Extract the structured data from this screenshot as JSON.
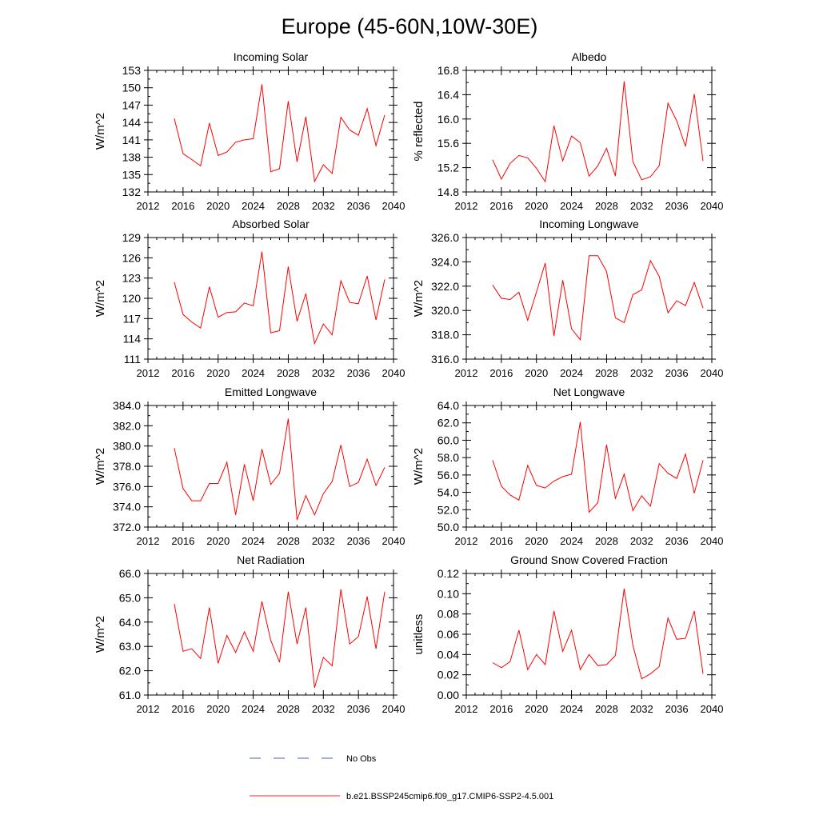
{
  "figure": {
    "title": "Europe (45-60N,10W-30E)",
    "legend": [
      {
        "label": "No Obs",
        "color": "#4a5fc1",
        "dash": true
      },
      {
        "label": "b.e21.BSSP245cmip6.f09_g17.CMIP6-SSP2-4.5.001",
        "color": "#ff2020",
        "dash": false
      }
    ]
  },
  "colors": {
    "series": "#ff0000",
    "obs": "#4a5fc1",
    "axis": "#000000"
  },
  "chart_data": [
    {
      "type": "line",
      "title": "Incoming Solar",
      "ylabel": "W/m^2",
      "xlim": [
        2012,
        2040
      ],
      "xticks": [
        "2012",
        "2016",
        "2020",
        "2024",
        "2028",
        "2032",
        "2036",
        "2040"
      ],
      "ylim": [
        132,
        153
      ],
      "yticks": [
        "132",
        "135",
        "138",
        "141",
        "144",
        "147",
        "150",
        "153"
      ],
      "x": [
        2015,
        2016,
        2017,
        2018,
        2019,
        2020,
        2021,
        2022,
        2023,
        2024,
        2025,
        2026,
        2027,
        2028,
        2029,
        2030,
        2031,
        2032,
        2033,
        2034,
        2035,
        2036,
        2037,
        2038,
        2039
      ],
      "values": [
        144.7,
        138.6,
        137.6,
        136.5,
        143.9,
        138.3,
        138.9,
        140.6,
        141.0,
        141.2,
        150.6,
        135.5,
        136.0,
        147.7,
        137.2,
        145.0,
        133.8,
        136.7,
        135.2,
        144.9,
        142.7,
        141.8,
        146.4,
        140.0,
        145.3
      ]
    },
    {
      "type": "line",
      "title": "Albedo",
      "ylabel": "% reflected",
      "xlim": [
        2012,
        2040
      ],
      "xticks": [
        "2012",
        "2016",
        "2020",
        "2024",
        "2028",
        "2032",
        "2036",
        "2040"
      ],
      "ylim": [
        14.8,
        16.8
      ],
      "yticks": [
        "14.8",
        "15.2",
        "15.6",
        "16.0",
        "16.4",
        "16.8"
      ],
      "x": [
        2015,
        2016,
        2017,
        2018,
        2019,
        2020,
        2021,
        2022,
        2023,
        2024,
        2025,
        2026,
        2027,
        2028,
        2029,
        2030,
        2031,
        2032,
        2033,
        2034,
        2035,
        2036,
        2037,
        2038,
        2039
      ],
      "values": [
        15.33,
        15.01,
        15.27,
        15.4,
        15.36,
        15.19,
        14.97,
        15.89,
        15.31,
        15.72,
        15.61,
        15.06,
        15.23,
        15.52,
        15.06,
        16.62,
        15.3,
        15.0,
        15.05,
        15.23,
        16.26,
        15.97,
        15.55,
        16.41,
        15.31
      ]
    },
    {
      "type": "line",
      "title": "Absorbed Solar",
      "ylabel": "W/m^2",
      "xlim": [
        2012,
        2040
      ],
      "xticks": [
        "2012",
        "2016",
        "2020",
        "2024",
        "2028",
        "2032",
        "2036",
        "2040"
      ],
      "ylim": [
        111,
        129
      ],
      "yticks": [
        "111",
        "114",
        "117",
        "120",
        "123",
        "126",
        "129"
      ],
      "x": [
        2015,
        2016,
        2017,
        2018,
        2019,
        2020,
        2021,
        2022,
        2023,
        2024,
        2025,
        2026,
        2027,
        2028,
        2029,
        2030,
        2031,
        2032,
        2033,
        2034,
        2035,
        2036,
        2037,
        2038,
        2039
      ],
      "values": [
        122.4,
        117.6,
        116.5,
        115.6,
        121.7,
        117.2,
        117.9,
        118.0,
        119.3,
        118.9,
        126.9,
        114.9,
        115.2,
        124.7,
        116.6,
        120.7,
        113.3,
        116.2,
        114.6,
        122.6,
        119.4,
        119.2,
        123.3,
        116.8,
        122.8
      ]
    },
    {
      "type": "line",
      "title": "Incoming Longwave",
      "ylabel": "W/m^2",
      "xlim": [
        2012,
        2040
      ],
      "xticks": [
        "2012",
        "2016",
        "2020",
        "2024",
        "2028",
        "2032",
        "2036",
        "2040"
      ],
      "ylim": [
        316,
        326
      ],
      "yticks": [
        "316.0",
        "318.0",
        "320.0",
        "322.0",
        "324.0",
        "326.0"
      ],
      "x": [
        2015,
        2016,
        2017,
        2018,
        2019,
        2020,
        2021,
        2022,
        2023,
        2024,
        2025,
        2026,
        2027,
        2028,
        2029,
        2030,
        2031,
        2032,
        2033,
        2034,
        2035,
        2036,
        2037,
        2038,
        2039
      ],
      "values": [
        322.1,
        321.0,
        320.9,
        321.5,
        319.2,
        321.5,
        323.9,
        317.9,
        322.5,
        318.5,
        317.6,
        324.5,
        324.5,
        323.2,
        319.4,
        319.0,
        321.3,
        321.7,
        324.1,
        322.8,
        319.8,
        320.8,
        320.4,
        322.3,
        320.2
      ]
    },
    {
      "type": "line",
      "title": "Emitted Longwave",
      "ylabel": "W/m^2",
      "xlim": [
        2012,
        2040
      ],
      "xticks": [
        "2012",
        "2016",
        "2020",
        "2024",
        "2028",
        "2032",
        "2036",
        "2040"
      ],
      "ylim": [
        372,
        384
      ],
      "yticks": [
        "372.0",
        "374.0",
        "376.0",
        "378.0",
        "380.0",
        "382.0",
        "384.0"
      ],
      "x": [
        2015,
        2016,
        2017,
        2018,
        2019,
        2020,
        2021,
        2022,
        2023,
        2024,
        2025,
        2026,
        2027,
        2028,
        2029,
        2030,
        2031,
        2032,
        2033,
        2034,
        2035,
        2036,
        2037,
        2038,
        2039
      ],
      "values": [
        379.8,
        375.8,
        374.6,
        374.6,
        376.3,
        376.3,
        378.4,
        373.2,
        378.2,
        374.6,
        379.7,
        376.2,
        377.3,
        382.7,
        372.7,
        375.1,
        373.2,
        375.3,
        376.5,
        380.1,
        376.0,
        376.4,
        378.7,
        376.1,
        377.9
      ]
    },
    {
      "type": "line",
      "title": "Net Longwave",
      "ylabel": "W/m^2",
      "xlim": [
        2012,
        2040
      ],
      "xticks": [
        "2012",
        "2016",
        "2020",
        "2024",
        "2028",
        "2032",
        "2036",
        "2040"
      ],
      "ylim": [
        50,
        64
      ],
      "yticks": [
        "50.0",
        "52.0",
        "54.0",
        "56.0",
        "58.0",
        "60.0",
        "62.0",
        "64.0"
      ],
      "x": [
        2015,
        2016,
        2017,
        2018,
        2019,
        2020,
        2021,
        2022,
        2023,
        2024,
        2025,
        2026,
        2027,
        2028,
        2029,
        2030,
        2031,
        2032,
        2033,
        2034,
        2035,
        2036,
        2037,
        2038,
        2039
      ],
      "values": [
        57.7,
        54.7,
        53.7,
        53.1,
        57.1,
        54.8,
        54.5,
        55.3,
        55.8,
        56.1,
        62.1,
        51.7,
        52.8,
        59.5,
        53.3,
        56.1,
        51.9,
        53.6,
        52.4,
        57.3,
        56.2,
        55.6,
        58.4,
        53.9,
        57.7
      ]
    },
    {
      "type": "line",
      "title": "Net Radiation",
      "ylabel": "W/m^2",
      "xlim": [
        2012,
        2040
      ],
      "xticks": [
        "2012",
        "2016",
        "2020",
        "2024",
        "2028",
        "2032",
        "2036",
        "2040"
      ],
      "ylim": [
        61,
        66
      ],
      "yticks": [
        "61.0",
        "62.0",
        "63.0",
        "64.0",
        "65.0",
        "66.0"
      ],
      "x": [
        2015,
        2016,
        2017,
        2018,
        2019,
        2020,
        2021,
        2022,
        2023,
        2024,
        2025,
        2026,
        2027,
        2028,
        2029,
        2030,
        2031,
        2032,
        2033,
        2034,
        2035,
        2036,
        2037,
        2038,
        2039
      ],
      "values": [
        64.75,
        62.8,
        62.9,
        62.5,
        64.6,
        62.3,
        63.45,
        62.75,
        63.6,
        62.8,
        64.85,
        63.25,
        62.35,
        65.25,
        63.1,
        64.6,
        61.3,
        62.55,
        62.2,
        65.35,
        63.1,
        63.4,
        65.05,
        62.9,
        65.25
      ]
    },
    {
      "type": "line",
      "title": "Ground Snow Covered Fraction",
      "ylabel": "unitless",
      "xlim": [
        2012,
        2040
      ],
      "xticks": [
        "2012",
        "2016",
        "2020",
        "2024",
        "2028",
        "2032",
        "2036",
        "2040"
      ],
      "ylim": [
        0,
        0.12
      ],
      "yticks": [
        "0.00",
        "0.02",
        "0.04",
        "0.06",
        "0.08",
        "0.10",
        "0.12"
      ],
      "x": [
        2015,
        2016,
        2017,
        2018,
        2019,
        2020,
        2021,
        2022,
        2023,
        2024,
        2025,
        2026,
        2027,
        2028,
        2029,
        2030,
        2031,
        2032,
        2033,
        2034,
        2035,
        2036,
        2037,
        2038,
        2039
      ],
      "values": [
        0.032,
        0.027,
        0.033,
        0.064,
        0.025,
        0.04,
        0.03,
        0.083,
        0.043,
        0.064,
        0.025,
        0.04,
        0.029,
        0.03,
        0.039,
        0.105,
        0.049,
        0.016,
        0.021,
        0.028,
        0.076,
        0.055,
        0.056,
        0.083,
        0.021
      ]
    }
  ]
}
